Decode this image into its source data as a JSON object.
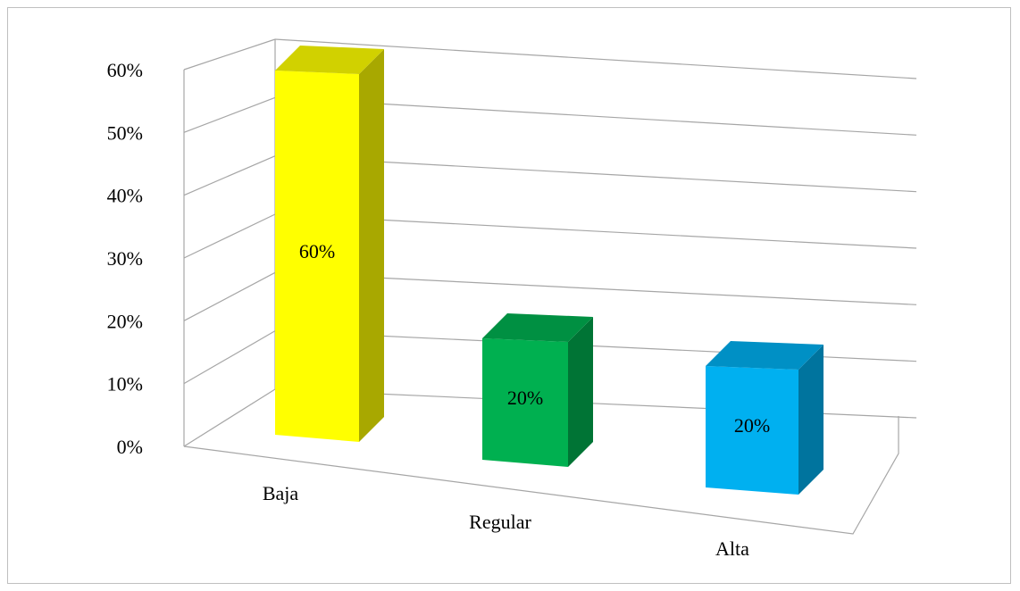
{
  "chart_data": {
    "type": "bar",
    "title": "",
    "xlabel": "",
    "ylabel": "",
    "categories": [
      "Baja",
      "Regular",
      "Alta"
    ],
    "values": [
      60,
      20,
      20
    ],
    "value_labels": [
      "60%",
      "20%",
      "20%"
    ],
    "ylim": [
      0,
      60
    ],
    "y_ticks": [
      "0%",
      "10%",
      "20%",
      "30%",
      "40%",
      "50%",
      "60%"
    ],
    "grid": true,
    "legend": "none",
    "style": "3d-column",
    "colors": [
      "#ffff00",
      "#00b050",
      "#00b0f0"
    ]
  }
}
